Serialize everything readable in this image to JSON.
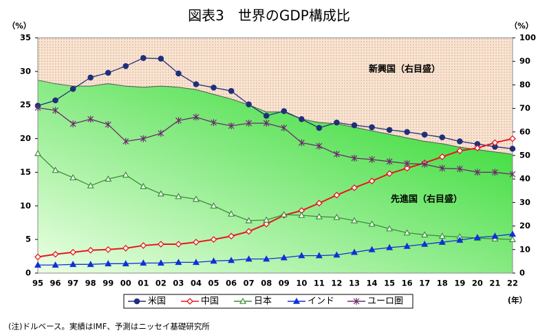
{
  "chart_data": {
    "type": "line",
    "title": "図表3　世界のGDP構成比",
    "ylabel": "（%）",
    "y2label": "（%）",
    "xlabel": "(年）",
    "note": "(注)ドルベース。実績はIMF、予測はニッセイ基礎研究所",
    "annotations": [
      "新興国（右目盛）",
      "先進国（右目盛）"
    ],
    "categories": [
      "95",
      "96",
      "97",
      "98",
      "99",
      "00",
      "01",
      "02",
      "03",
      "04",
      "05",
      "06",
      "07",
      "08",
      "09",
      "10",
      "11",
      "12",
      "13",
      "14",
      "15",
      "16",
      "17",
      "18",
      "19",
      "20",
      "21",
      "22"
    ],
    "ylim": [
      0,
      35
    ],
    "yticks": [
      0,
      5,
      10,
      15,
      20,
      25,
      30,
      35
    ],
    "y2lim": [
      0,
      100
    ],
    "y2ticks": [
      0,
      10,
      20,
      30,
      40,
      50,
      60,
      70,
      80,
      90,
      100
    ],
    "area": {
      "axis": "y2",
      "values": [
        82,
        80.5,
        79.5,
        79.5,
        80.5,
        79.5,
        79,
        79.5,
        79,
        78,
        76,
        74,
        71.5,
        68.5,
        68.5,
        65.5,
        64,
        63.5,
        62,
        60.5,
        59,
        57.5,
        56,
        55,
        53.5,
        52.5,
        51.5,
        50.5
      ]
    },
    "series": [
      {
        "name": "米国",
        "color": "#1f2f7a",
        "marker": "circle",
        "values": [
          24.9,
          25.7,
          27.4,
          29.1,
          29.8,
          30.8,
          32.0,
          31.9,
          29.7,
          28.1,
          27.6,
          27.1,
          25.1,
          23.4,
          24.1,
          22.9,
          21.6,
          22.4,
          22.0,
          21.7,
          21.3,
          21.0,
          20.6,
          20.2,
          19.6,
          19.2,
          18.8,
          18.5
        ]
      },
      {
        "name": "中国",
        "color": "#e8141c",
        "marker": "diamond",
        "values": [
          2.4,
          2.8,
          3.1,
          3.4,
          3.5,
          3.7,
          4.1,
          4.3,
          4.3,
          4.6,
          5.0,
          5.5,
          6.2,
          7.3,
          8.6,
          9.3,
          10.4,
          11.6,
          12.7,
          13.7,
          14.8,
          15.6,
          16.4,
          17.3,
          18.2,
          18.6,
          19.4,
          20.0
        ]
      },
      {
        "name": "日本",
        "color": "#3c8c3c",
        "marker": "triangle-open",
        "values": [
          17.8,
          15.3,
          14.2,
          13.0,
          14.0,
          14.6,
          12.9,
          11.8,
          11.4,
          11.0,
          10.0,
          8.8,
          7.8,
          7.9,
          8.7,
          8.6,
          8.4,
          8.3,
          7.8,
          7.3,
          6.6,
          6.0,
          5.7,
          5.5,
          5.4,
          5.2,
          5.1,
          5.0
        ]
      },
      {
        "name": "インド",
        "color": "#1030d8",
        "marker": "triangle",
        "values": [
          1.2,
          1.2,
          1.3,
          1.3,
          1.4,
          1.4,
          1.5,
          1.5,
          1.6,
          1.6,
          1.8,
          1.9,
          2.1,
          2.1,
          2.3,
          2.6,
          2.6,
          2.7,
          3.1,
          3.5,
          3.8,
          4.0,
          4.3,
          4.6,
          4.9,
          5.3,
          5.5,
          5.8
        ]
      },
      {
        "name": "ユーロ圏",
        "color": "#6b2a6b",
        "marker": "star",
        "values": [
          24.6,
          24.2,
          22.2,
          22.9,
          22.1,
          19.6,
          20.0,
          20.8,
          22.7,
          23.2,
          22.4,
          21.9,
          22.3,
          22.3,
          21.6,
          19.4,
          18.9,
          17.7,
          17.1,
          16.9,
          16.6,
          16.3,
          16.2,
          15.6,
          15.5,
          15.0,
          15.0,
          14.7
        ]
      }
    ]
  }
}
